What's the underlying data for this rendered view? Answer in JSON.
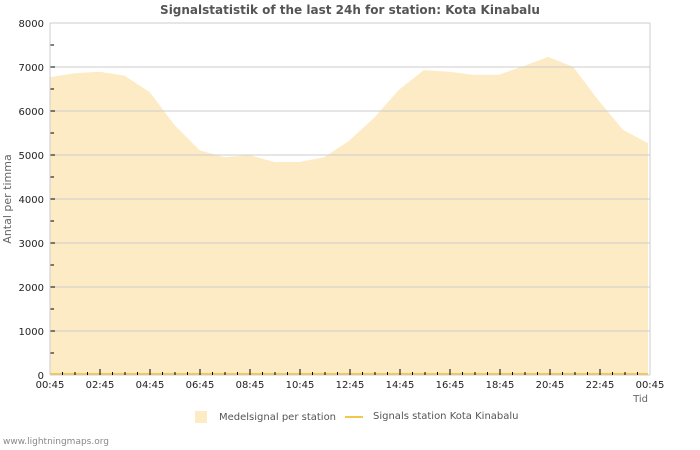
{
  "chart_data": {
    "type": "area",
    "title": "Signalstatistik of the last 24h for station: Kota Kinabalu",
    "xlabel": "Tid",
    "ylabel": "Antal per timma",
    "ylim": [
      0,
      8000
    ],
    "yticks": [
      0,
      1000,
      2000,
      3000,
      4000,
      5000,
      6000,
      7000,
      8000
    ],
    "xtick_labels": [
      "00:45",
      "02:45",
      "04:45",
      "06:45",
      "08:45",
      "10:45",
      "12:45",
      "14:45",
      "16:45",
      "18:45",
      "20:45",
      "22:45",
      "00:45"
    ],
    "grid": true,
    "legend_position": "bottom",
    "x": [
      "00:45",
      "01:45",
      "02:45",
      "03:45",
      "04:45",
      "05:45",
      "06:45",
      "07:45",
      "08:45",
      "09:45",
      "10:45",
      "11:45",
      "12:45",
      "13:45",
      "14:45",
      "15:45",
      "16:45",
      "17:45",
      "18:45",
      "19:45",
      "20:45",
      "21:45",
      "22:45",
      "23:45",
      "00:45"
    ],
    "series": [
      {
        "name": "Medelsignal per station",
        "style": "area",
        "color": "#fdebc6",
        "values": [
          6770,
          6860,
          6890,
          6800,
          6430,
          5680,
          5110,
          4950,
          5000,
          4840,
          4840,
          4950,
          5320,
          5840,
          6480,
          6930,
          6890,
          6820,
          6820,
          7020,
          7230,
          7000,
          6250,
          5570,
          5270
        ]
      },
      {
        "name": "Signals station Kota Kinabalu",
        "style": "line",
        "color": "#f2c84b",
        "values": [
          0,
          0,
          0,
          0,
          0,
          0,
          0,
          0,
          0,
          0,
          0,
          0,
          0,
          0,
          0,
          0,
          0,
          0,
          0,
          0,
          0,
          0,
          0,
          0,
          0
        ]
      }
    ]
  },
  "legend": {
    "area_label": "Medelsignal per station",
    "line_label": "Signals station Kota Kinabalu"
  },
  "footer": "www.lightningmaps.org"
}
